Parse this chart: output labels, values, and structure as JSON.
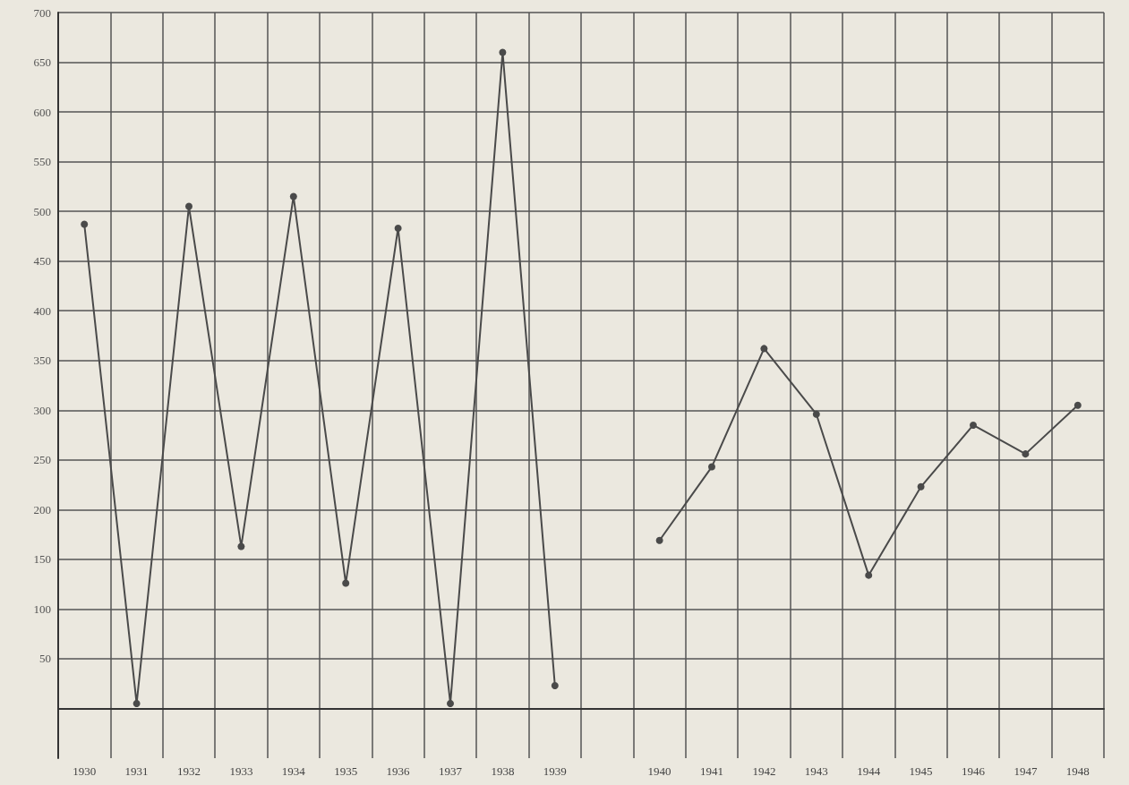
{
  "chart_data": {
    "type": "line",
    "categories": [
      "1930",
      "1931",
      "1932",
      "1933",
      "1934",
      "1935",
      "1936",
      "1937",
      "1938",
      "1939",
      null,
      "1940",
      "1941",
      "1942",
      "1943",
      "1944",
      "1945",
      "1946",
      "1947",
      "1948"
    ],
    "series": [
      {
        "color": "#4a4a4a",
        "values": [
          487,
          5,
          505,
          163,
          515,
          126,
          483,
          5,
          660,
          23,
          null,
          169,
          243,
          362,
          296,
          134,
          223,
          285,
          256,
          305
        ]
      }
    ],
    "ylim": [
      -50,
      700
    ],
    "yticks": [
      {
        "value": 0,
        "label": null
      },
      50,
      100,
      150,
      200,
      250,
      300,
      350,
      400,
      450,
      500,
      550,
      600,
      650,
      700
    ],
    "grid": true,
    "marker": "circle",
    "line_style": "solid"
  }
}
